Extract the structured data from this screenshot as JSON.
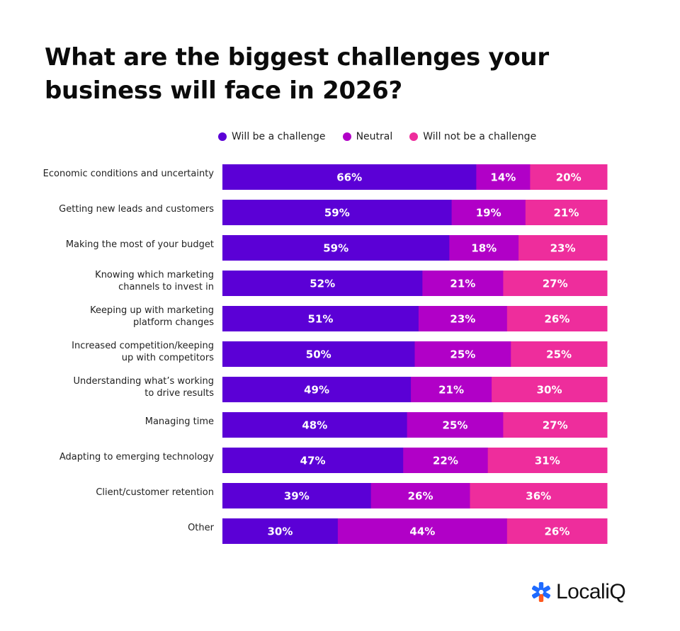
{
  "chart_data": {
    "type": "bar",
    "orientation": "horizontal",
    "stacked": true,
    "title": "What are the biggest challenges your business will face in 2026?",
    "legend_position": "top",
    "categories": [
      [
        "Economic conditions and uncertainty"
      ],
      [
        "Getting new leads and customers"
      ],
      [
        "Making the most of your budget"
      ],
      [
        "Knowing which marketing",
        "channels to invest in"
      ],
      [
        "Keeping up with marketing",
        "platform changes"
      ],
      [
        "Increased competition/keeping",
        "up with competitors"
      ],
      [
        "Understanding what’s working",
        "to drive results"
      ],
      [
        "Managing time"
      ],
      [
        "Adapting to emerging technology"
      ],
      [
        "Client/customer retention"
      ],
      [
        "Other"
      ]
    ],
    "series": [
      {
        "name": "Will be a challenge",
        "color": "#5B00D6",
        "values": [
          66,
          59,
          59,
          52,
          51,
          50,
          49,
          48,
          47,
          39,
          30
        ]
      },
      {
        "name": "Neutral",
        "color": "#B100C7",
        "values": [
          14,
          19,
          18,
          21,
          23,
          25,
          21,
          25,
          22,
          26,
          44
        ]
      },
      {
        "name": "Will not be a challenge",
        "color": "#EE2D9C",
        "values": [
          20,
          21,
          23,
          27,
          26,
          25,
          30,
          27,
          31,
          36,
          26
        ]
      }
    ],
    "value_suffix": "%"
  },
  "logo": {
    "text": "LocaliQ",
    "icon": "localiq-asterisk-logo"
  }
}
